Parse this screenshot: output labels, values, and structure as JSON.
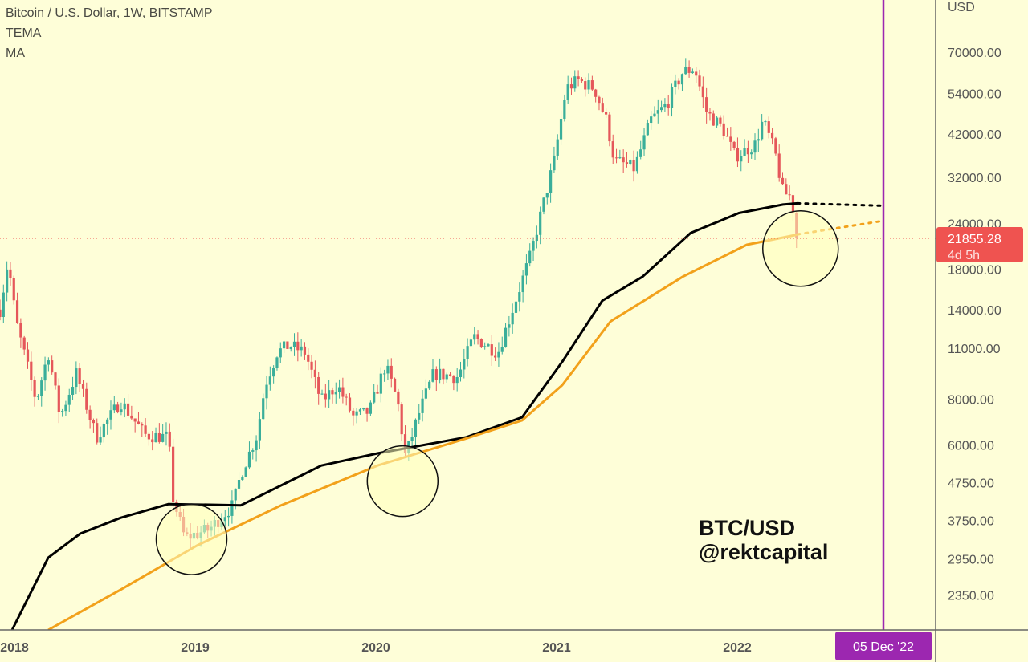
{
  "legend": {
    "title": "Bitcoin / U.S. Dollar, 1W, BITSTAMP",
    "ind1": "TEMA",
    "ind2": "MA"
  },
  "watermark": {
    "line1": "BTC/USD",
    "line2": "@rektcapital"
  },
  "colors": {
    "background": "#fefed8",
    "up": "#3aae9a",
    "down": "#e5575a",
    "ma_long": "#000000",
    "ma_short": "#f2a11b",
    "cursor": "#9c27b0",
    "price_tag": "#ef5350"
  },
  "chart_data": {
    "type": "candlestick",
    "title": "Bitcoin / U.S. Dollar, 1W, BITSTAMP",
    "yscale": "log",
    "ylabel": "USD",
    "ylim": [
      1750,
      85000
    ],
    "xlim": [
      2017.92,
      2023.25
    ],
    "y_ticks": [
      "70000.00",
      "54000.00",
      "42000.00",
      "32000.00",
      "24000.00",
      "18000.00",
      "14000.00",
      "11000.00",
      "8000.00",
      "6000.00",
      "4750.00",
      "3750.00",
      "2950.00",
      "2350.00"
    ],
    "x_ticks": [
      "2018",
      "2019",
      "2020",
      "2021",
      "2022"
    ],
    "last_price": {
      "value": "21855.28",
      "countdown": "4d 5h"
    },
    "cursor_date": "05 Dec '22",
    "price_path": [
      [
        2017.92,
        14000
      ],
      [
        2017.964,
        19000
      ],
      [
        2018.009,
        13000
      ],
      [
        2018.12,
        7900
      ],
      [
        2018.187,
        10700
      ],
      [
        2018.253,
        7150
      ],
      [
        2018.342,
        9400
      ],
      [
        2018.453,
        6300
      ],
      [
        2018.587,
        7900
      ],
      [
        2018.72,
        6400
      ],
      [
        2018.853,
        6300
      ],
      [
        2018.876,
        4330
      ],
      [
        2018.942,
        3360
      ],
      [
        2019.076,
        3540
      ],
      [
        2019.209,
        4120
      ],
      [
        2019.253,
        5020
      ],
      [
        2019.342,
        6400
      ],
      [
        2019.387,
        8730
      ],
      [
        2019.453,
        10700
      ],
      [
        2019.52,
        11200
      ],
      [
        2019.609,
        10700
      ],
      [
        2019.698,
        7900
      ],
      [
        2019.787,
        8730
      ],
      [
        2019.876,
        7150
      ],
      [
        2019.964,
        7400
      ],
      [
        2020.053,
        9900
      ],
      [
        2020.12,
        7900
      ],
      [
        2020.164,
        5560
      ],
      [
        2020.231,
        7150
      ],
      [
        2020.32,
        9400
      ],
      [
        2020.453,
        9200
      ],
      [
        2020.542,
        11800
      ],
      [
        2020.676,
        10700
      ],
      [
        2020.764,
        14400
      ],
      [
        2020.853,
        19450
      ],
      [
        2020.92,
        26300
      ],
      [
        2020.987,
        35600
      ],
      [
        2021.053,
        55800
      ],
      [
        2021.12,
        58700
      ],
      [
        2021.209,
        55800
      ],
      [
        2021.276,
        45700
      ],
      [
        2021.32,
        35600
      ],
      [
        2021.431,
        33800
      ],
      [
        2021.52,
        45700
      ],
      [
        2021.609,
        50500
      ],
      [
        2021.698,
        61800
      ],
      [
        2021.764,
        63200
      ],
      [
        2021.831,
        48000
      ],
      [
        2021.92,
        43500
      ],
      [
        2021.987,
        36500
      ],
      [
        2022.098,
        39300
      ],
      [
        2022.142,
        45700
      ],
      [
        2022.209,
        37400
      ],
      [
        2022.253,
        29100
      ],
      [
        2022.298,
        28400
      ],
      [
        2022.333,
        21855
      ]
    ],
    "series": [
      {
        "name": "TEMA",
        "color": "#000000",
        "points": [
          [
            2017.987,
            1890
          ],
          [
            2018.187,
            2970
          ],
          [
            2018.364,
            3450
          ],
          [
            2018.587,
            3810
          ],
          [
            2018.853,
            4150
          ],
          [
            2019.253,
            4120
          ],
          [
            2019.698,
            5280
          ],
          [
            2020.009,
            5700
          ],
          [
            2020.498,
            6300
          ],
          [
            2020.809,
            7140
          ],
          [
            2021.031,
            10100
          ],
          [
            2021.253,
            14800
          ],
          [
            2021.476,
            17200
          ],
          [
            2021.742,
            22600
          ],
          [
            2022.009,
            25600
          ],
          [
            2022.253,
            27000
          ],
          [
            2022.333,
            27200
          ]
        ],
        "projection": [
          [
            2022.333,
            27200
          ],
          [
            2022.809,
            26800
          ]
        ]
      },
      {
        "name": "MA",
        "color": "#f2a11b",
        "points": [
          [
            2018.187,
            1890
          ],
          [
            2018.587,
            2430
          ],
          [
            2019.009,
            3200
          ],
          [
            2019.476,
            4120
          ],
          [
            2020.009,
            5280
          ],
          [
            2020.498,
            6250
          ],
          [
            2020.809,
            7000
          ],
          [
            2021.031,
            8730
          ],
          [
            2021.298,
            13000
          ],
          [
            2021.698,
            17200
          ],
          [
            2022.053,
            21000
          ],
          [
            2022.32,
            22300
          ],
          [
            2022.333,
            22400
          ]
        ],
        "projection": [
          [
            2022.333,
            22400
          ],
          [
            2022.809,
            24400
          ]
        ]
      }
    ],
    "annotations": [
      {
        "type": "circle",
        "date": 2018.98,
        "price": 3330
      },
      {
        "type": "circle",
        "date": 2020.148,
        "price": 4790
      },
      {
        "type": "circle",
        "date": 2022.35,
        "price": 20500
      }
    ]
  }
}
